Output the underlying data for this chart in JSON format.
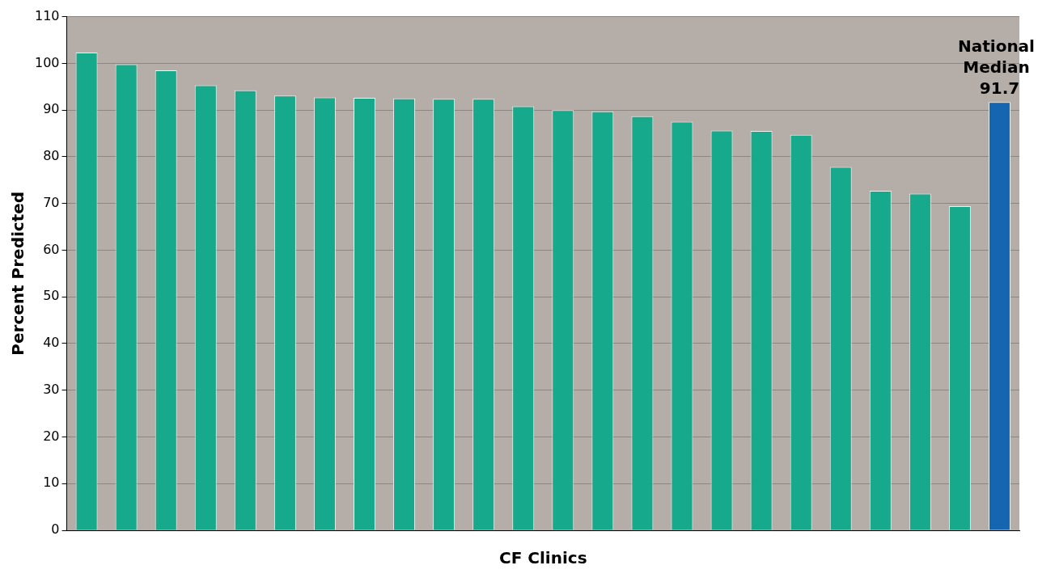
{
  "chart_data": {
    "type": "bar",
    "xlabel": "CF Clinics",
    "ylabel": "Percent Predicted",
    "categories": [
      null,
      null,
      null,
      null,
      null,
      null,
      null,
      null,
      null,
      null,
      null,
      null,
      null,
      null,
      null,
      null,
      null,
      null,
      null,
      null,
      null,
      null,
      null,
      null
    ],
    "values": [
      102.3,
      99.8,
      98.5,
      95.3,
      94.2,
      93.1,
      92.7,
      92.6,
      92.5,
      92.4,
      92.4,
      90.8,
      90.0,
      89.7,
      88.7,
      87.5,
      85.6,
      85.5,
      84.7,
      77.8,
      72.7,
      72.1,
      69.4,
      91.7
    ],
    "colors": [
      "#17a98b",
      "#17a98b",
      "#17a98b",
      "#17a98b",
      "#17a98b",
      "#17a98b",
      "#17a98b",
      "#17a98b",
      "#17a98b",
      "#17a98b",
      "#17a98b",
      "#17a98b",
      "#17a98b",
      "#17a98b",
      "#17a98b",
      "#17a98b",
      "#17a98b",
      "#17a98b",
      "#17a98b",
      "#17a98b",
      "#17a98b",
      "#17a98b",
      "#17a98b",
      "#1565b0"
    ],
    "value_labels": [
      null,
      null,
      null,
      null,
      null,
      null,
      null,
      null,
      null,
      null,
      null,
      null,
      null,
      null,
      null,
      null,
      null,
      null,
      null,
      null,
      null,
      null,
      null,
      "91.7"
    ],
    "annotations": [
      "National Median"
    ],
    "ylim": [
      0,
      110
    ],
    "yticks": [
      0,
      10,
      20,
      30,
      40,
      50,
      60,
      70,
      80,
      90,
      100,
      110
    ],
    "grid": "y",
    "legend": false
  }
}
